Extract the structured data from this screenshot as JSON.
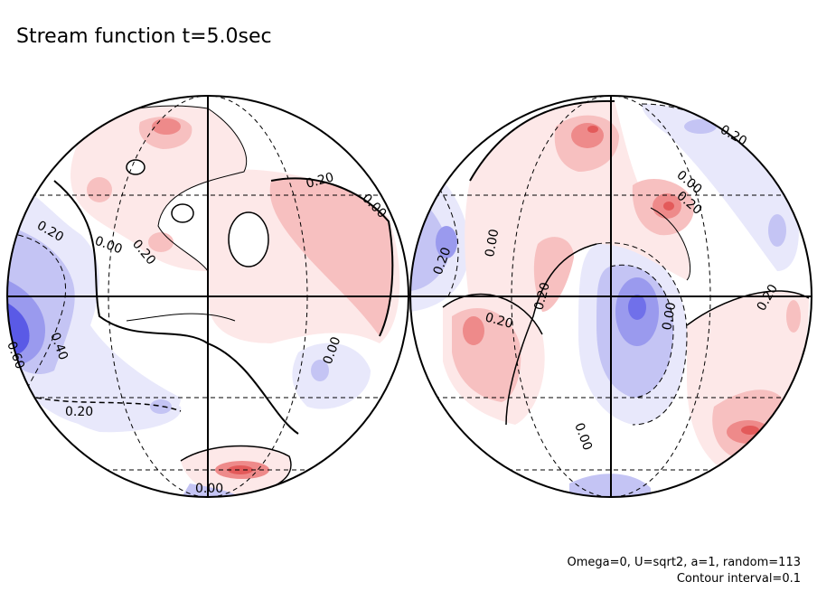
{
  "title": "Stream function t=5.0sec",
  "footer": {
    "line1": "Omega=0, U=sqrt2, a=1, random=113",
    "line2": "Contour interval=0.1"
  },
  "colors": {
    "positive_light": "#fde8e8",
    "positive_mid": "#f7c0c0",
    "positive_strong": "#ee8a8a",
    "positive_max": "#e35a5a",
    "negative_light": "#e8e8fb",
    "negative_mid": "#c4c4f4",
    "negative_strong": "#9a9aee",
    "negative_max": "#5a5ae6"
  },
  "hemispheres": [
    {
      "labels": [
        "0.20",
        "0.00",
        "0.20",
        "0.20",
        "0.00",
        "0.40",
        "0.60",
        "0.20",
        "0.00",
        "0.00"
      ]
    },
    {
      "labels": [
        "0.20",
        "0.00",
        "0.20",
        "0.00",
        "0.20",
        "0.20",
        "0.20",
        "0.00",
        "0.00",
        "0.20"
      ]
    }
  ]
}
